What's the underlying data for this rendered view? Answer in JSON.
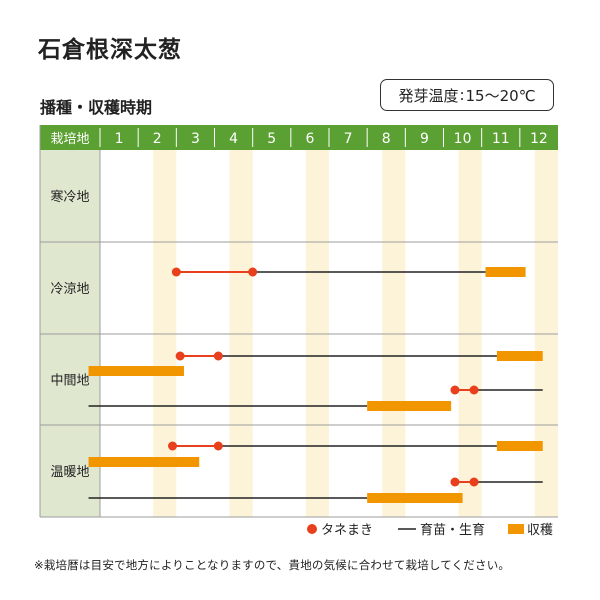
{
  "title": "石倉根深太葱",
  "section_label": "播種・収穫時期",
  "germination": {
    "label": "発芽温度",
    "separator": ":",
    "value": "15～20℃"
  },
  "footnote": "※栽培暦は目安で地方によりことなりますので、貴地の気候に合わせて栽培してください。",
  "colors": {
    "header": "#5ba033",
    "stripe": "#fdf3d9",
    "rowlabel_bg": "#dfe7cf",
    "sowing": "#e8401c",
    "growth": "#222222",
    "harvest": "#f29600",
    "grid": "#9c9c9c"
  },
  "chart_data": {
    "type": "gantt",
    "header_label": "栽培地",
    "months": [
      "1",
      "2",
      "3",
      "4",
      "5",
      "6",
      "7",
      "8",
      "9",
      "10",
      "11",
      "12"
    ],
    "legend": [
      {
        "key": "sowing",
        "label": "タネまき"
      },
      {
        "key": "growth",
        "label": "育苗・生育"
      },
      {
        "key": "harvest",
        "label": "収穫"
      }
    ],
    "regions": [
      {
        "name": "寒冷地",
        "tracks": []
      },
      {
        "name": "冷涼地",
        "tracks": [
          {
            "sowing": [
              3,
              5
            ],
            "growth": [
              5,
              11.1
            ],
            "harvest": [
              [
                11.1,
                12.15
              ]
            ]
          }
        ]
      },
      {
        "name": "中間地",
        "tracks": [
          {
            "sowing": [
              3.1,
              4.1
            ],
            "growth": [
              4.1,
              11.4
            ],
            "harvest": [
              [
                11.4,
                12.6
              ]
            ]
          },
          {
            "harvest": [
              [
                0.7,
                3.2
              ]
            ]
          },
          {
            "sowing": [
              10.3,
              10.8
            ],
            "growth": [
              10.8,
              12.6
            ]
          },
          {
            "growth": [
              0.7,
              8
            ],
            "harvest": [
              [
                8,
                10.2
              ]
            ]
          }
        ]
      },
      {
        "name": "温暖地",
        "tracks": [
          {
            "sowing": [
              2.9,
              4.1
            ],
            "growth": [
              4.1,
              11.4
            ],
            "harvest": [
              [
                11.4,
                12.6
              ]
            ]
          },
          {
            "harvest": [
              [
                0.7,
                3.6
              ]
            ]
          },
          {
            "sowing": [
              10.3,
              10.8
            ],
            "growth": [
              10.8,
              12.6
            ]
          },
          {
            "growth": [
              0.7,
              8
            ],
            "harvest": [
              [
                8,
                10.5
              ]
            ]
          }
        ]
      }
    ]
  }
}
